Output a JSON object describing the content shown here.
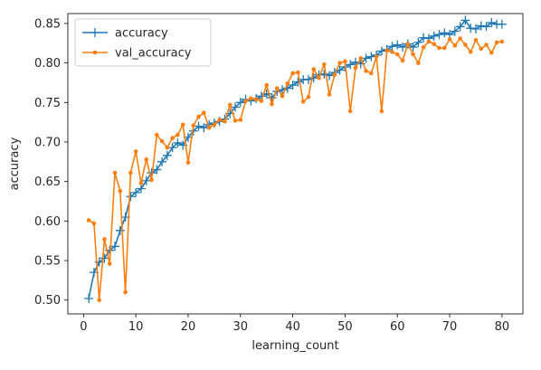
{
  "chart_data": {
    "type": "line",
    "title": "",
    "xlabel": "learning_count",
    "ylabel": "accuracy",
    "xlim": [
      -3,
      84
    ],
    "ylim": [
      0.4825,
      0.8625
    ],
    "xticks": [
      0,
      10,
      20,
      30,
      40,
      50,
      60,
      70,
      80
    ],
    "yticks": [
      0.5,
      0.55,
      0.6,
      0.65,
      0.7,
      0.75,
      0.8,
      0.85
    ],
    "ytick_labels": [
      "0.50",
      "0.55",
      "0.60",
      "0.65",
      "0.70",
      "0.75",
      "0.80",
      "0.85"
    ],
    "grid": false,
    "legend_position": "upper-left",
    "series": [
      {
        "name": "accuracy",
        "color": "#1f77b4",
        "marker": "plus",
        "x": [
          1,
          2,
          3,
          4,
          5,
          6,
          7,
          8,
          9,
          10,
          11,
          12,
          13,
          14,
          15,
          16,
          17,
          18,
          19,
          20,
          21,
          22,
          23,
          24,
          25,
          26,
          27,
          28,
          29,
          30,
          31,
          32,
          33,
          34,
          35,
          36,
          37,
          38,
          39,
          40,
          41,
          42,
          43,
          44,
          45,
          46,
          47,
          48,
          49,
          50,
          51,
          52,
          53,
          54,
          55,
          56,
          57,
          58,
          59,
          60,
          61,
          62,
          63,
          64,
          65,
          66,
          67,
          68,
          69,
          70,
          71,
          72,
          73,
          74,
          75,
          76,
          77,
          78,
          79,
          80
        ],
        "values": [
          0.502,
          0.535,
          0.548,
          0.553,
          0.563,
          0.568,
          0.588,
          0.605,
          0.631,
          0.636,
          0.641,
          0.651,
          0.661,
          0.665,
          0.675,
          0.683,
          0.693,
          0.699,
          0.696,
          0.706,
          0.714,
          0.72,
          0.718,
          0.722,
          0.724,
          0.726,
          0.729,
          0.736,
          0.744,
          0.75,
          0.754,
          0.752,
          0.755,
          0.758,
          0.761,
          0.756,
          0.764,
          0.766,
          0.768,
          0.772,
          0.776,
          0.779,
          0.779,
          0.781,
          0.785,
          0.786,
          0.784,
          0.788,
          0.791,
          0.795,
          0.798,
          0.801,
          0.799,
          0.806,
          0.808,
          0.81,
          0.815,
          0.817,
          0.821,
          0.823,
          0.82,
          0.824,
          0.82,
          0.826,
          0.832,
          0.831,
          0.834,
          0.836,
          0.838,
          0.836,
          0.84,
          0.846,
          0.854,
          0.844,
          0.843,
          0.847,
          0.846,
          0.851,
          0.849,
          0.849
        ]
      },
      {
        "name": "val_accuracy",
        "color": "#ff7f0e",
        "marker": "dot",
        "x": [
          1,
          2,
          3,
          4,
          5,
          6,
          7,
          8,
          9,
          10,
          11,
          12,
          13,
          14,
          15,
          16,
          17,
          18,
          19,
          20,
          21,
          22,
          23,
          24,
          25,
          26,
          27,
          28,
          29,
          30,
          31,
          32,
          33,
          34,
          35,
          36,
          37,
          38,
          39,
          40,
          41,
          42,
          43,
          44,
          45,
          46,
          47,
          48,
          49,
          50,
          51,
          52,
          53,
          54,
          55,
          56,
          57,
          58,
          59,
          60,
          61,
          62,
          63,
          64,
          65,
          66,
          67,
          68,
          69,
          70,
          71,
          72,
          73,
          74,
          75,
          76,
          77,
          78,
          79,
          80
        ],
        "values": [
          0.601,
          0.597,
          0.5,
          0.577,
          0.546,
          0.661,
          0.638,
          0.51,
          0.661,
          0.688,
          0.648,
          0.678,
          0.652,
          0.709,
          0.701,
          0.693,
          0.705,
          0.709,
          0.722,
          0.674,
          0.721,
          0.732,
          0.737,
          0.718,
          0.722,
          0.728,
          0.726,
          0.747,
          0.727,
          0.728,
          0.752,
          0.755,
          0.754,
          0.752,
          0.772,
          0.748,
          0.768,
          0.758,
          0.774,
          0.787,
          0.788,
          0.751,
          0.757,
          0.792,
          0.781,
          0.798,
          0.76,
          0.785,
          0.8,
          0.802,
          0.739,
          0.794,
          0.806,
          0.79,
          0.787,
          0.808,
          0.739,
          0.816,
          0.814,
          0.811,
          0.803,
          0.824,
          0.811,
          0.8,
          0.82,
          0.827,
          0.824,
          0.819,
          0.819,
          0.83,
          0.822,
          0.831,
          0.823,
          0.814,
          0.829,
          0.818,
          0.823,
          0.813,
          0.826,
          0.827
        ]
      }
    ]
  }
}
